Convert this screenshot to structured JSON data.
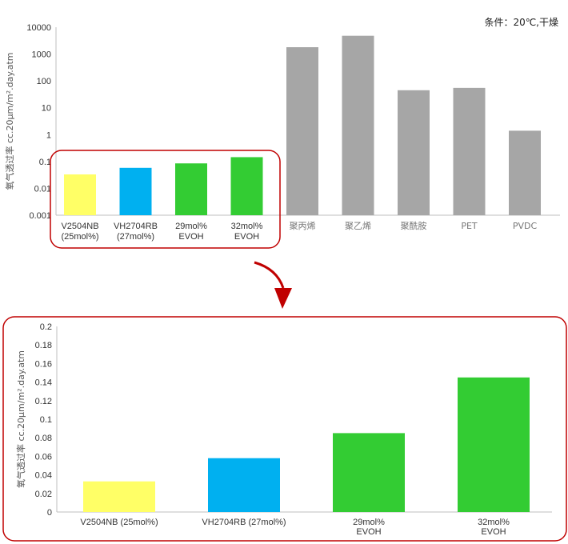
{
  "condition_label": "条件：20℃,干燥",
  "chart_data": [
    {
      "type": "bar",
      "scale": "log",
      "ylabel": "氧气透过率 cc.20μm/m².day.atm",
      "ylim": [
        0.001,
        10000
      ],
      "yticks": [
        "0.001",
        "0.01",
        "0.1",
        "1",
        "10",
        "100",
        "1000",
        "10000"
      ],
      "categories": [
        [
          "V2504NB",
          "(25mol%)"
        ],
        [
          "VH2704RB",
          "(27mol%)"
        ],
        [
          "29mol%",
          "EVOH"
        ],
        [
          "32mol%",
          "EVOH"
        ],
        [
          "聚丙烯"
        ],
        [
          "聚乙烯"
        ],
        [
          "聚酰胺"
        ],
        [
          "PET"
        ],
        [
          "PVDC"
        ]
      ],
      "values": [
        0.033,
        0.058,
        0.085,
        0.145,
        1800,
        4800,
        45,
        55,
        1.4
      ],
      "colors": [
        "#ffff66",
        "#00b0f0",
        "#33cc33",
        "#33cc33",
        "#a6a6a6",
        "#a6a6a6",
        "#a6a6a6",
        "#a6a6a6",
        "#a6a6a6"
      ],
      "highlight": "first four bars enclosed in a red rounded box",
      "grid": false
    },
    {
      "type": "bar",
      "ylabel": "氧气透过率 cc.20μm/m².day.atm",
      "ylim": [
        0,
        0.2
      ],
      "yticks": [
        "0",
        "0.02",
        "0.04",
        "0.06",
        "0.08",
        "0.1",
        "0.12",
        "0.14",
        "0.16",
        "0.18",
        "0.2"
      ],
      "categories": [
        [
          "V2504NB (25mol%)"
        ],
        [
          "VH2704RB (27mol%)"
        ],
        [
          "29mol%",
          "EVOH"
        ],
        [
          "32mol%",
          "EVOH"
        ]
      ],
      "values": [
        0.033,
        0.058,
        0.085,
        0.145
      ],
      "colors": [
        "#ffff66",
        "#00b0f0",
        "#33cc33",
        "#33cc33"
      ],
      "grid": false
    }
  ]
}
